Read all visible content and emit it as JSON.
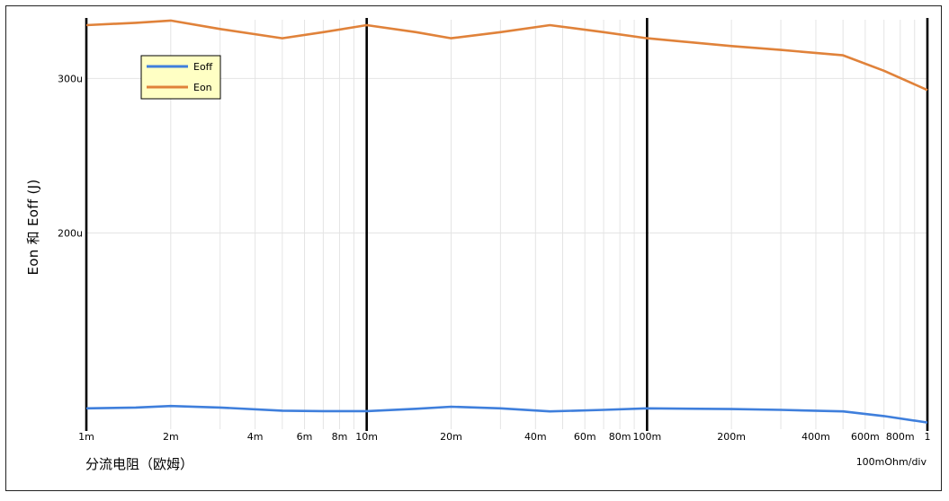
{
  "chart_data": {
    "type": "line",
    "x_scale": "log",
    "x": [
      0.001,
      0.002,
      0.005,
      0.01,
      0.02,
      0.05,
      0.1,
      0.5,
      1
    ],
    "xlim": [
      0.001,
      1
    ],
    "xticks": [
      "1m",
      "2m",
      "4m",
      "6m",
      "8m",
      "10m",
      "20m",
      "40m",
      "60m",
      "80m",
      "100m",
      "200m",
      "400m",
      "600m",
      "800m",
      "1"
    ],
    "yticks": [
      "300u",
      "200u"
    ],
    "ylim": [
      7.3e-05,
      0.000338
    ],
    "ylabel": "Eon 和 Eoff (J)",
    "xlabel": "分流电阻（欧姆）",
    "scale_note": "100mOhm/div",
    "legend_position": "top-left",
    "grid": true,
    "series": [
      {
        "name": "Eoff",
        "color": "#3f7fdc",
        "points": [
          [
            0.001,
            8.65e-05
          ],
          [
            0.0015,
            8.7e-05
          ],
          [
            0.002,
            8.8e-05
          ],
          [
            0.003,
            8.7e-05
          ],
          [
            0.005,
            8.5e-05
          ],
          [
            0.007,
            8.47e-05
          ],
          [
            0.01,
            8.47e-05
          ],
          [
            0.015,
            8.62e-05
          ],
          [
            0.02,
            8.75e-05
          ],
          [
            0.03,
            8.65e-05
          ],
          [
            0.045,
            8.45e-05
          ],
          [
            0.07,
            8.55e-05
          ],
          [
            0.1,
            8.65e-05
          ],
          [
            0.2,
            8.6e-05
          ],
          [
            0.3,
            8.55e-05
          ],
          [
            0.5,
            8.45e-05
          ],
          [
            0.7,
            8.15e-05
          ],
          [
            1,
            7.73e-05
          ]
        ]
      },
      {
        "name": "Eon",
        "color": "#e0823a",
        "points": [
          [
            0.001,
            0.0003345
          ],
          [
            0.0015,
            0.000336
          ],
          [
            0.002,
            0.0003375
          ],
          [
            0.003,
            0.000332
          ],
          [
            0.005,
            0.000326
          ],
          [
            0.007,
            0.00033
          ],
          [
            0.01,
            0.0003345
          ],
          [
            0.015,
            0.00033
          ],
          [
            0.02,
            0.000326
          ],
          [
            0.03,
            0.00033
          ],
          [
            0.045,
            0.0003345
          ],
          [
            0.07,
            0.00033
          ],
          [
            0.1,
            0.000326
          ],
          [
            0.2,
            0.000321
          ],
          [
            0.3,
            0.0003185
          ],
          [
            0.5,
            0.000315
          ],
          [
            0.7,
            0.000305
          ],
          [
            1,
            0.0002925
          ]
        ]
      }
    ]
  },
  "colors": {
    "grid": "#e4e4e4",
    "decade_line": "#000000",
    "legend_bg": "#ffffc4"
  }
}
